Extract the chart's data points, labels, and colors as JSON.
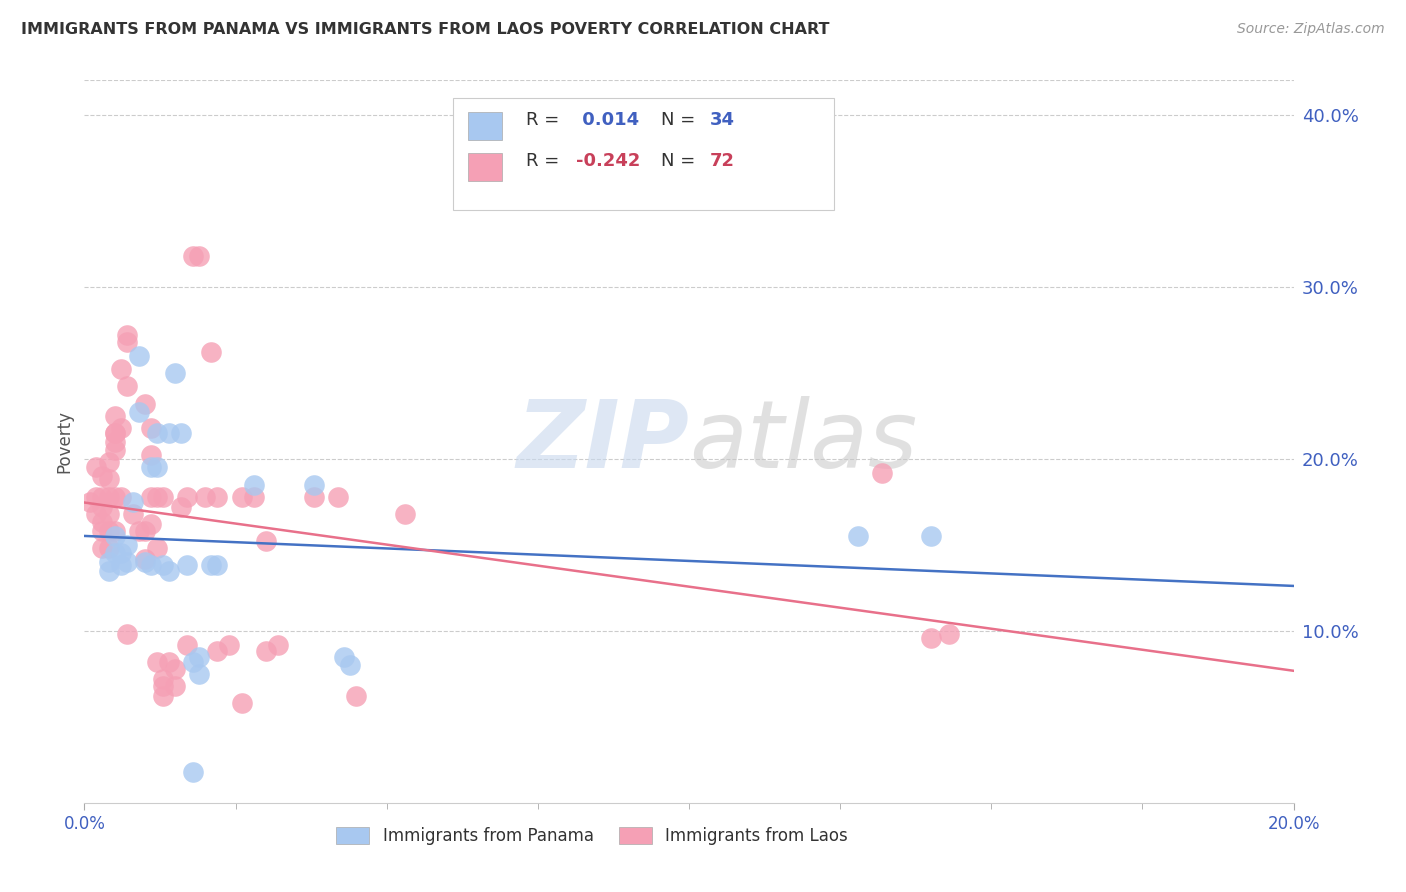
{
  "title": "IMMIGRANTS FROM PANAMA VS IMMIGRANTS FROM LAOS POVERTY CORRELATION CHART",
  "source": "Source: ZipAtlas.com",
  "ylabel": "Poverty",
  "watermark": "ZIPatlas",
  "panama_R": 0.014,
  "panama_N": 34,
  "laos_R": -0.242,
  "laos_N": 72,
  "xmin": 0.0,
  "xmax": 0.2,
  "ymin": 0.0,
  "ymax": 0.42,
  "yticks": [
    0.1,
    0.2,
    0.3,
    0.4
  ],
  "ytick_labels": [
    "10.0%",
    "20.0%",
    "30.0%",
    "40.0%"
  ],
  "panama_color": "#a8c8f0",
  "laos_color": "#f5a0b5",
  "panama_line_color": "#4472c4",
  "laos_line_color": "#e8708a",
  "xtick_minor": [
    0.025,
    0.05,
    0.075,
    0.1,
    0.125,
    0.15,
    0.175
  ],
  "panama_scatter": [
    [
      0.004,
      0.14
    ],
    [
      0.004,
      0.135
    ],
    [
      0.005,
      0.155
    ],
    [
      0.005,
      0.145
    ],
    [
      0.006,
      0.138
    ],
    [
      0.006,
      0.145
    ],
    [
      0.007,
      0.15
    ],
    [
      0.007,
      0.14
    ],
    [
      0.008,
      0.175
    ],
    [
      0.009,
      0.26
    ],
    [
      0.009,
      0.227
    ],
    [
      0.01,
      0.14
    ],
    [
      0.011,
      0.195
    ],
    [
      0.011,
      0.138
    ],
    [
      0.012,
      0.195
    ],
    [
      0.012,
      0.215
    ],
    [
      0.013,
      0.138
    ],
    [
      0.014,
      0.215
    ],
    [
      0.014,
      0.135
    ],
    [
      0.015,
      0.25
    ],
    [
      0.016,
      0.215
    ],
    [
      0.017,
      0.138
    ],
    [
      0.018,
      0.082
    ],
    [
      0.018,
      0.018
    ],
    [
      0.019,
      0.075
    ],
    [
      0.019,
      0.085
    ],
    [
      0.021,
      0.138
    ],
    [
      0.022,
      0.138
    ],
    [
      0.028,
      0.185
    ],
    [
      0.038,
      0.185
    ],
    [
      0.043,
      0.085
    ],
    [
      0.044,
      0.08
    ],
    [
      0.128,
      0.155
    ],
    [
      0.14,
      0.155
    ]
  ],
  "laos_scatter": [
    [
      0.001,
      0.175
    ],
    [
      0.002,
      0.195
    ],
    [
      0.002,
      0.178
    ],
    [
      0.002,
      0.168
    ],
    [
      0.003,
      0.19
    ],
    [
      0.003,
      0.178
    ],
    [
      0.003,
      0.172
    ],
    [
      0.003,
      0.163
    ],
    [
      0.003,
      0.158
    ],
    [
      0.003,
      0.148
    ],
    [
      0.004,
      0.198
    ],
    [
      0.004,
      0.188
    ],
    [
      0.004,
      0.178
    ],
    [
      0.004,
      0.168
    ],
    [
      0.004,
      0.158
    ],
    [
      0.004,
      0.148
    ],
    [
      0.005,
      0.215
    ],
    [
      0.005,
      0.205
    ],
    [
      0.005,
      0.178
    ],
    [
      0.005,
      0.158
    ],
    [
      0.005,
      0.225
    ],
    [
      0.005,
      0.215
    ],
    [
      0.005,
      0.21
    ],
    [
      0.006,
      0.252
    ],
    [
      0.006,
      0.218
    ],
    [
      0.006,
      0.178
    ],
    [
      0.007,
      0.242
    ],
    [
      0.007,
      0.272
    ],
    [
      0.007,
      0.268
    ],
    [
      0.007,
      0.098
    ],
    [
      0.008,
      0.168
    ],
    [
      0.009,
      0.158
    ],
    [
      0.01,
      0.158
    ],
    [
      0.01,
      0.142
    ],
    [
      0.01,
      0.232
    ],
    [
      0.011,
      0.218
    ],
    [
      0.011,
      0.202
    ],
    [
      0.011,
      0.178
    ],
    [
      0.011,
      0.162
    ],
    [
      0.012,
      0.148
    ],
    [
      0.012,
      0.178
    ],
    [
      0.012,
      0.082
    ],
    [
      0.013,
      0.072
    ],
    [
      0.013,
      0.068
    ],
    [
      0.013,
      0.178
    ],
    [
      0.013,
      0.062
    ],
    [
      0.014,
      0.082
    ],
    [
      0.015,
      0.078
    ],
    [
      0.015,
      0.068
    ],
    [
      0.016,
      0.172
    ],
    [
      0.017,
      0.092
    ],
    [
      0.017,
      0.178
    ],
    [
      0.018,
      0.318
    ],
    [
      0.019,
      0.318
    ],
    [
      0.02,
      0.178
    ],
    [
      0.021,
      0.262
    ],
    [
      0.022,
      0.178
    ],
    [
      0.022,
      0.088
    ],
    [
      0.024,
      0.092
    ],
    [
      0.026,
      0.178
    ],
    [
      0.026,
      0.058
    ],
    [
      0.028,
      0.178
    ],
    [
      0.03,
      0.152
    ],
    [
      0.03,
      0.088
    ],
    [
      0.032,
      0.092
    ],
    [
      0.038,
      0.178
    ],
    [
      0.042,
      0.178
    ],
    [
      0.045,
      0.062
    ],
    [
      0.053,
      0.168
    ],
    [
      0.132,
      0.192
    ],
    [
      0.14,
      0.096
    ],
    [
      0.143,
      0.098
    ]
  ]
}
